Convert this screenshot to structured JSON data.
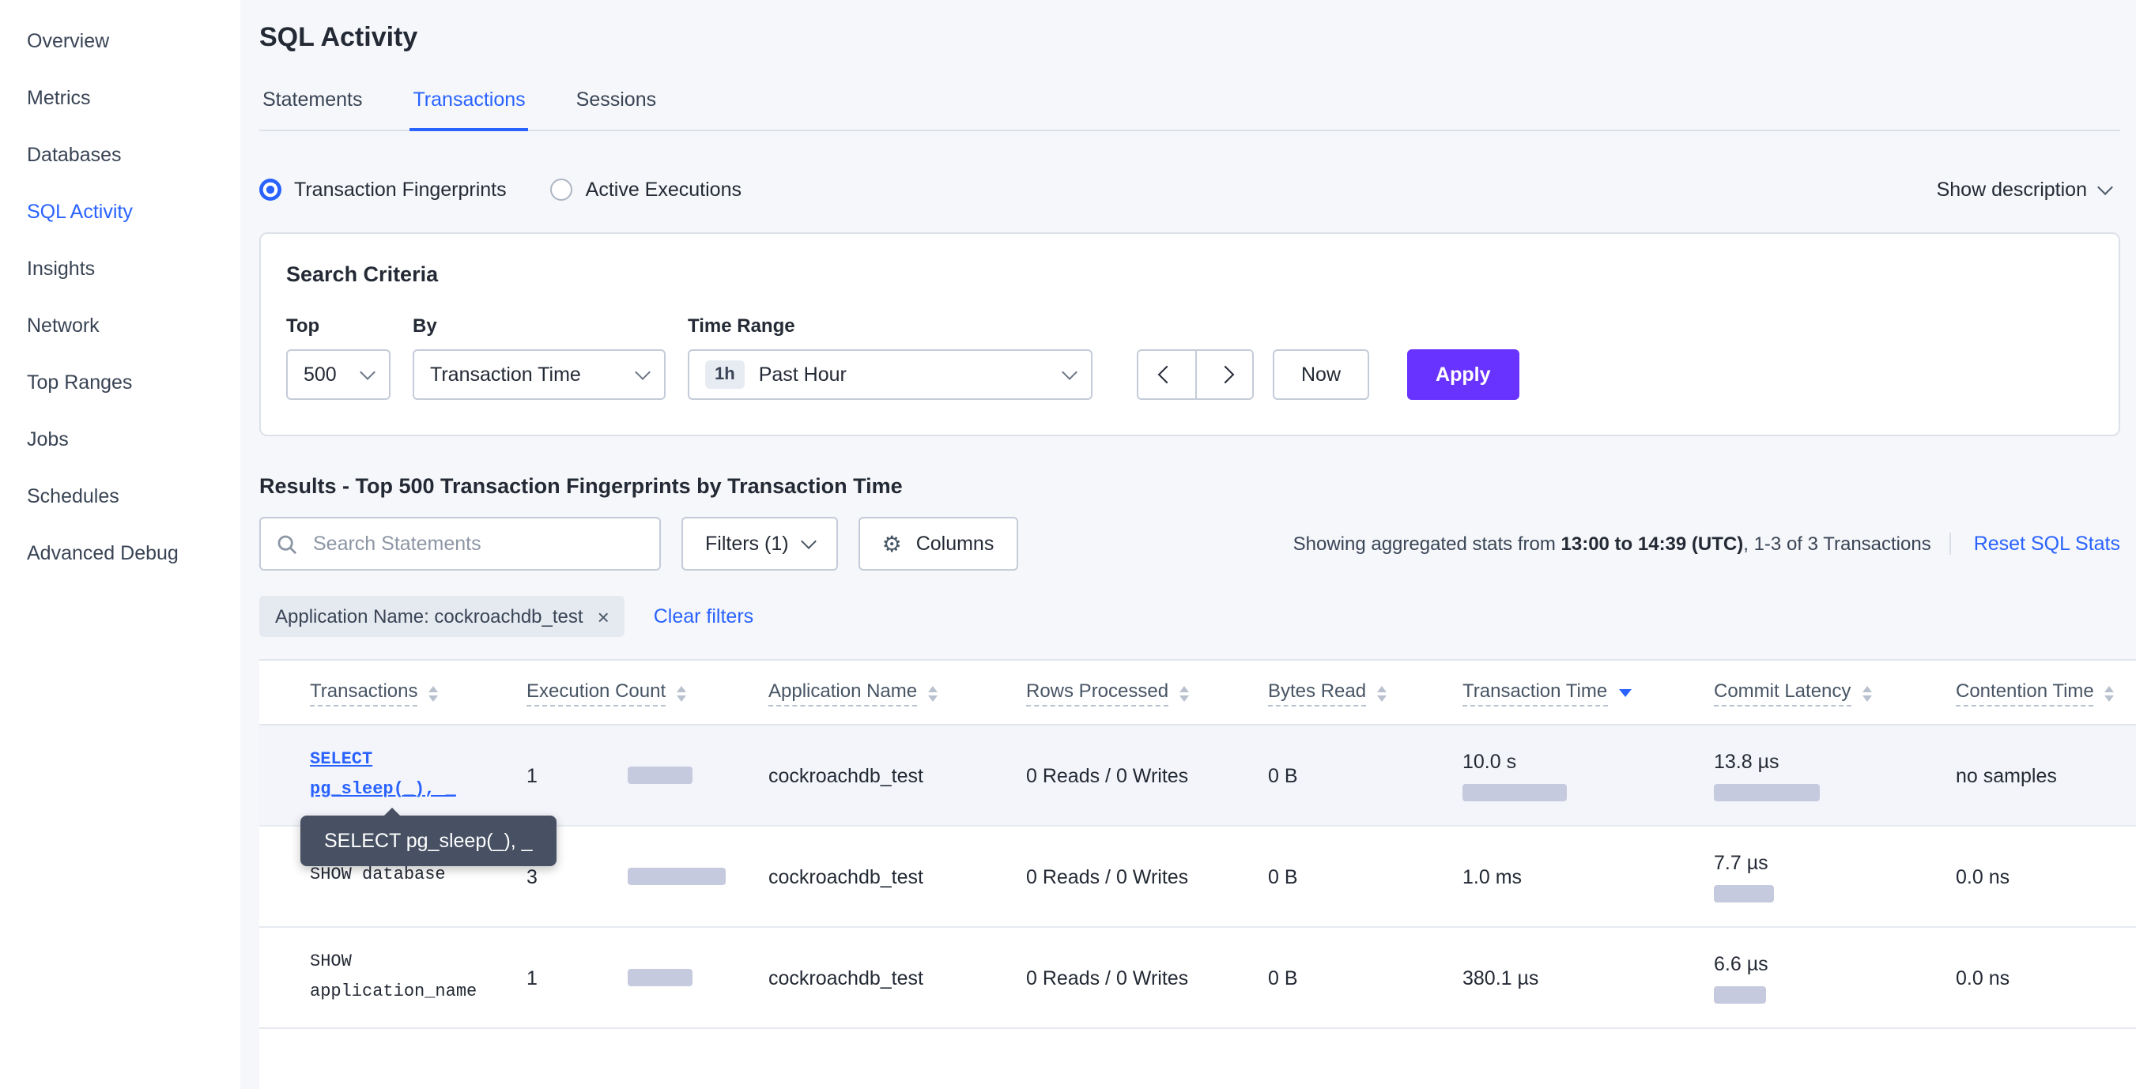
{
  "sidebar": {
    "items": [
      {
        "label": "Overview"
      },
      {
        "label": "Metrics"
      },
      {
        "label": "Databases"
      },
      {
        "label": "SQL Activity"
      },
      {
        "label": "Insights"
      },
      {
        "label": "Network"
      },
      {
        "label": "Top Ranges"
      },
      {
        "label": "Jobs"
      },
      {
        "label": "Schedules"
      },
      {
        "label": "Advanced Debug"
      }
    ]
  },
  "header": {
    "title": "SQL Activity"
  },
  "tabs": [
    {
      "label": "Statements"
    },
    {
      "label": "Transactions"
    },
    {
      "label": "Sessions"
    }
  ],
  "view_toggle": {
    "options": [
      {
        "label": "Transaction Fingerprints",
        "selected": true
      },
      {
        "label": "Active Executions",
        "selected": false
      }
    ],
    "show_description": "Show description"
  },
  "search_criteria": {
    "title": "Search Criteria",
    "top": {
      "label": "Top",
      "value": "500"
    },
    "by": {
      "label": "By",
      "value": "Transaction Time"
    },
    "time_range": {
      "label": "Time Range",
      "badge": "1h",
      "value": "Past Hour"
    },
    "now_label": "Now",
    "apply_label": "Apply"
  },
  "results": {
    "heading": "Results - Top 500 Transaction Fingerprints by Transaction Time",
    "search_placeholder": "Search Statements",
    "filters_label": "Filters (1)",
    "columns_label": "Columns",
    "stats_prefix": "Showing aggregated stats from ",
    "stats_bold": "13:00 to 14:39 (UTC)",
    "stats_suffix": ", 1-3 of 3 Transactions",
    "reset_label": "Reset SQL Stats",
    "filter_chip": "Application Name: cockroachdb_test",
    "clear_filters": "Clear filters"
  },
  "colors": {
    "accent_blue": "#2962ff",
    "apply_purple": "#6933ff",
    "bar_fill": "#c5cade"
  },
  "tooltip": {
    "text": "SELECT pg_sleep(_), _"
  },
  "table": {
    "columns": [
      "Transactions",
      "Execution Count",
      "Application Name",
      "Rows Processed",
      "Bytes Read",
      "Transaction Time",
      "Commit Latency",
      "Contention Time"
    ],
    "sorted_column": "Transaction Time",
    "rows": [
      {
        "transaction": "SELECT pg_sleep(_), _",
        "execution_count": "1",
        "app": "cockroachdb_test",
        "rows_processed": "0 Reads / 0 Writes",
        "bytes_read": "0 B",
        "txn_time": "10.0 s",
        "commit_latency": "13.8 µs",
        "contention": "no samples",
        "bars": {
          "exec": 41,
          "txn": 66,
          "commit": 67
        }
      },
      {
        "transaction": "SHOW database",
        "execution_count": "3",
        "app": "cockroachdb_test",
        "rows_processed": "0 Reads / 0 Writes",
        "bytes_read": "0 B",
        "txn_time": "1.0 ms",
        "commit_latency": "7.7 µs",
        "contention": "0.0 ns",
        "bars": {
          "exec": 62,
          "txn": 0,
          "commit": 38
        }
      },
      {
        "transaction": "SHOW application_name",
        "execution_count": "1",
        "app": "cockroachdb_test",
        "rows_processed": "0 Reads / 0 Writes",
        "bytes_read": "0 B",
        "txn_time": "380.1 µs",
        "commit_latency": "6.6 µs",
        "contention": "0.0 ns",
        "bars": {
          "exec": 41,
          "txn": 0,
          "commit": 33
        }
      }
    ]
  }
}
